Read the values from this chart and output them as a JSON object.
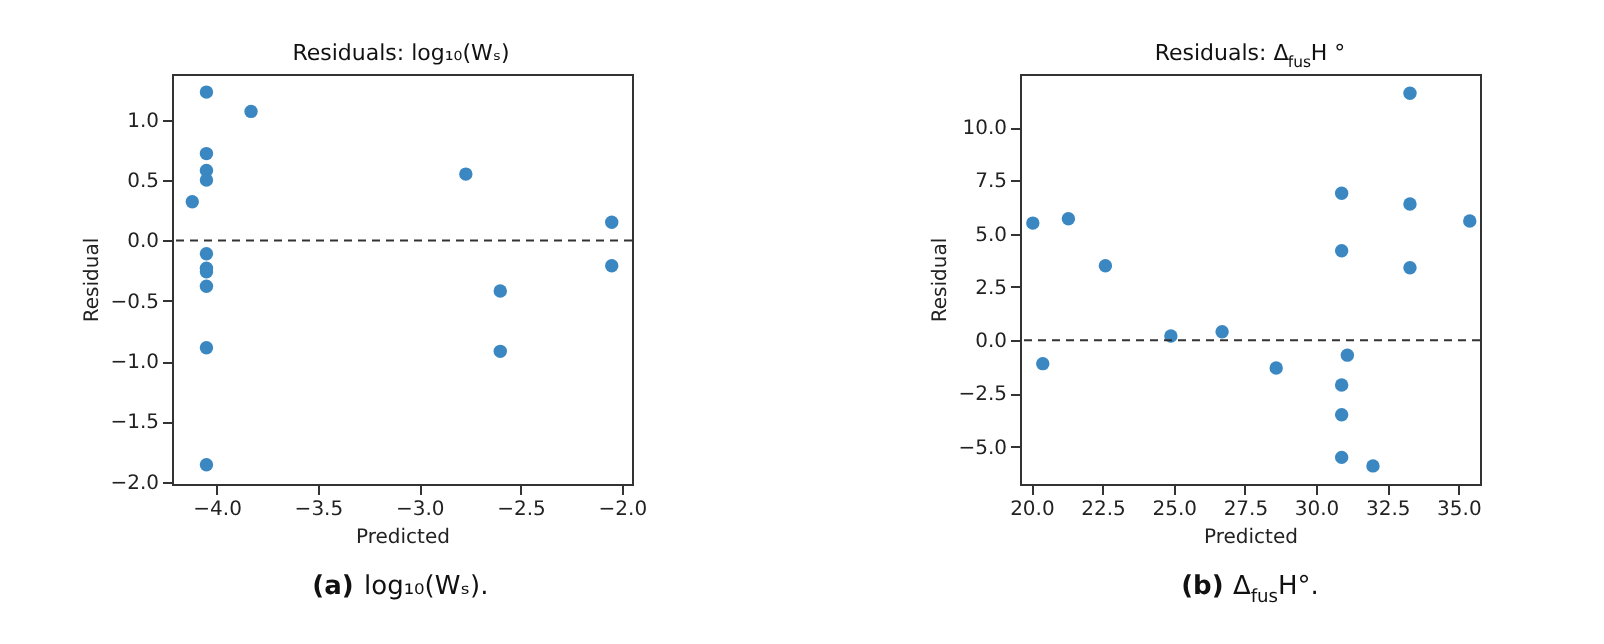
{
  "chart_data": [
    {
      "type": "scatter",
      "title": "Residuals: log₁₀(Wₛ)",
      "xlabel": "Predicted",
      "ylabel": "Residual",
      "x": [
        -4.05,
        -4.05,
        -4.05,
        -4.05,
        -4.12,
        -4.05,
        -4.05,
        -4.05,
        -4.05,
        -4.05,
        -4.05,
        -3.83,
        -2.77,
        -2.6,
        -2.6,
        -2.05,
        -2.05
      ],
      "values": [
        1.23,
        0.72,
        0.58,
        0.5,
        0.32,
        -0.11,
        -0.23,
        -0.26,
        -0.38,
        -0.89,
        -1.86,
        1.07,
        0.55,
        -0.42,
        -0.92,
        0.15,
        -0.21
      ],
      "color": "#3a87c1",
      "marker": "circle",
      "grid": false,
      "xlim": [
        -4.22,
        -1.95
      ],
      "xticks": [
        {
          "value": -4,
          "label": "−4.0"
        },
        {
          "value": -3.5,
          "label": "−3.5"
        },
        {
          "value": -3,
          "label": "−3.0"
        },
        {
          "value": -2.5,
          "label": "−2.5"
        },
        {
          "value": -2,
          "label": "−2.0"
        }
      ],
      "ylim": [
        -2.02,
        1.38
      ],
      "yticks": [
        {
          "value": -2,
          "label": "−2.0"
        },
        {
          "value": -1.5,
          "label": "−1.5"
        },
        {
          "value": -1,
          "label": "−1.0"
        },
        {
          "value": -0.5,
          "label": "−0.5"
        },
        {
          "value": 0,
          "label": "0.0"
        },
        {
          "value": 0.5,
          "label": "0.5"
        },
        {
          "value": 1,
          "label": "1.0"
        }
      ],
      "ref_lines": [
        {
          "axis": "y",
          "value": 0,
          "line_style": "dashed",
          "color": "#333333"
        }
      ],
      "annotations": [
        "(a) log₁₀(Wₛ)."
      ]
    },
    {
      "type": "scatter",
      "title": "Residuals: Δ$_{fus}$H °",
      "xlabel": "Predicted",
      "ylabel": "Residual",
      "x": [
        20.05,
        20.4,
        21.3,
        22.6,
        24.9,
        26.7,
        28.6,
        30.9,
        30.9,
        31.1,
        30.9,
        30.9,
        30.9,
        32.0,
        33.3,
        33.3,
        33.3,
        35.4
      ],
      "values": [
        5.5,
        -1.1,
        5.7,
        3.5,
        0.2,
        0.4,
        -1.3,
        6.9,
        4.2,
        -0.7,
        -2.1,
        -3.5,
        -5.5,
        -5.9,
        11.6,
        6.4,
        3.4,
        5.6
      ],
      "color": "#3a87c1",
      "marker": "circle",
      "grid": false,
      "xlim": [
        19.6,
        35.76
      ],
      "xticks": [
        {
          "value": 20,
          "label": "20.0"
        },
        22.5,
        {
          "value": 25,
          "label": "25.0"
        },
        27.5,
        {
          "value": 30,
          "label": "30.0"
        },
        32.5,
        {
          "value": 35,
          "label": "35.0"
        }
      ],
      "ylim": [
        -6.75,
        12.5
      ],
      "yticks": [
        {
          "value": -5,
          "label": "−5.0"
        },
        {
          "value": -2.5,
          "label": "−2.5"
        },
        {
          "value": 0,
          "label": "0.0"
        },
        2.5,
        {
          "value": 5,
          "label": "5.0"
        },
        7.5,
        {
          "value": 10,
          "label": "10.0"
        }
      ],
      "ref_lines": [
        {
          "axis": "y",
          "value": 0,
          "line_style": "dashed",
          "color": "#333333"
        }
      ],
      "annotations": [
        "(b) Δ$_{fus}$H°."
      ]
    }
  ]
}
